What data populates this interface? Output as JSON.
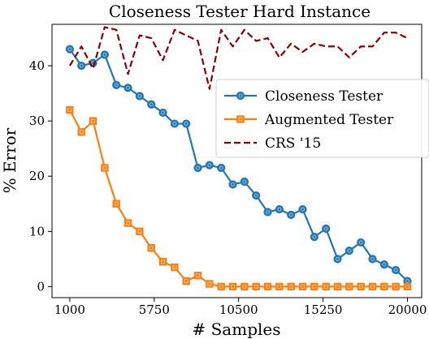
{
  "chart_data": {
    "type": "line",
    "title": "Closeness Tester Hard Instance",
    "xlabel": "# Samples",
    "ylabel": "% Error",
    "xlim": [
      0,
      20800
    ],
    "ylim": [
      -2,
      47.5
    ],
    "xticks": [
      1000,
      5750,
      10500,
      15250,
      20000
    ],
    "xtick_labels": [
      "1000",
      "5750",
      "10500",
      "15250",
      "20000"
    ],
    "yticks": [
      0,
      10,
      20,
      30,
      40
    ],
    "ytick_labels": [
      "0",
      "10",
      "20",
      "30",
      "40"
    ],
    "grid": false,
    "legend_position": "center-right",
    "x": [
      1000,
      1655,
      2310,
      2966,
      3621,
      4276,
      4931,
      5586,
      6241,
      6897,
      7552,
      8207,
      8862,
      9517,
      10172,
      10828,
      11483,
      12138,
      12793,
      13448,
      14103,
      14759,
      15414,
      16069,
      16724,
      17379,
      18034,
      18690,
      19345,
      20000
    ],
    "series": [
      {
        "name": "Closeness Tester",
        "color": "#1f77b4",
        "marker": "circle",
        "line_style": "solid",
        "values": [
          43,
          40,
          40.5,
          42,
          36.5,
          36,
          34.5,
          33,
          31.5,
          29.5,
          29.5,
          21.5,
          22,
          21.5,
          18.5,
          19,
          16.5,
          13.5,
          14,
          13,
          14,
          9,
          10.5,
          5,
          6.5,
          8,
          5,
          4,
          3,
          1
        ]
      },
      {
        "name": "Augmented Tester",
        "color": "#ff7f0e",
        "marker": "square",
        "line_style": "solid",
        "values": [
          32,
          28,
          30,
          21.5,
          15,
          11.5,
          10,
          7,
          4.5,
          3.5,
          1,
          2,
          0.5,
          0,
          0,
          0,
          0,
          0,
          0,
          0,
          0,
          0,
          0,
          0,
          0,
          0,
          0,
          0,
          0,
          0
        ]
      },
      {
        "name": "CRS '15",
        "color": "#8b0000",
        "marker": "none",
        "line_style": "dashed",
        "values": [
          40,
          43.5,
          39.5,
          47,
          46.5,
          38.5,
          45.5,
          45,
          41,
          46.5,
          45.5,
          44.5,
          35.8,
          46.5,
          43.5,
          46.5,
          44.5,
          45,
          41.5,
          44,
          42.5,
          44,
          43.5,
          43.5,
          41.5,
          43.5,
          43.5,
          46,
          46,
          45
        ]
      }
    ]
  }
}
